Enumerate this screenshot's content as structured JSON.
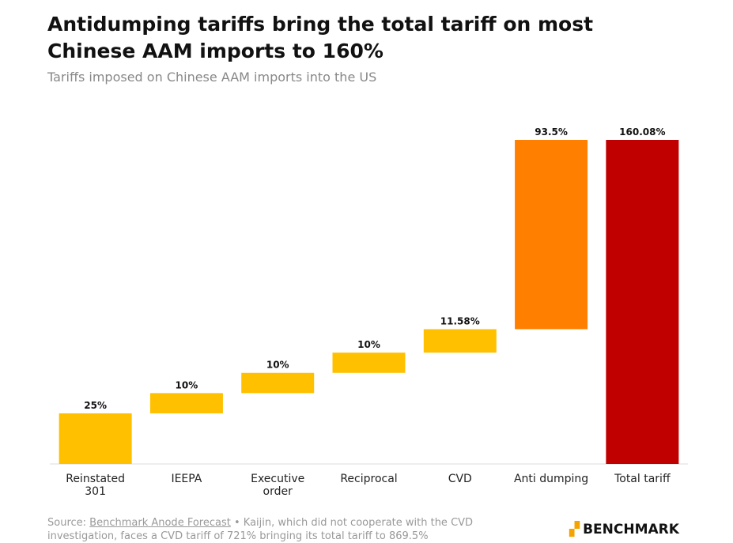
{
  "chart_data": {
    "type": "waterfall",
    "title": "Antidumping tariffs bring the total tariff on most Chinese AAM imports to 160%",
    "subtitle": "Tariffs imposed on Chinese AAM imports into the US",
    "categories": [
      "Reinstated 301",
      "IEEPA",
      "Executive order",
      "Reciprocal",
      "CVD",
      "Anti dumping",
      "Total tariff"
    ],
    "values": [
      25,
      10,
      10,
      10,
      11.58,
      93.5,
      160.08
    ],
    "value_labels": [
      "25%",
      "10%",
      "10%",
      "10%",
      "11.58%",
      "93.5%",
      "160.08%"
    ],
    "colors": [
      "#ffc000",
      "#ffc000",
      "#ffc000",
      "#ffc000",
      "#ffc000",
      "#ff7f00",
      "#c00000"
    ]
  },
  "footer": {
    "source_prefix": "Source:",
    "source_link": "Benchmark Anode Forecast",
    "note": "• Kaijin, which did not cooperate with the CVD investigation, faces a CVD tariff of 721% bringing its total tariff to 869.5%",
    "logo": "BENCHMARK"
  }
}
